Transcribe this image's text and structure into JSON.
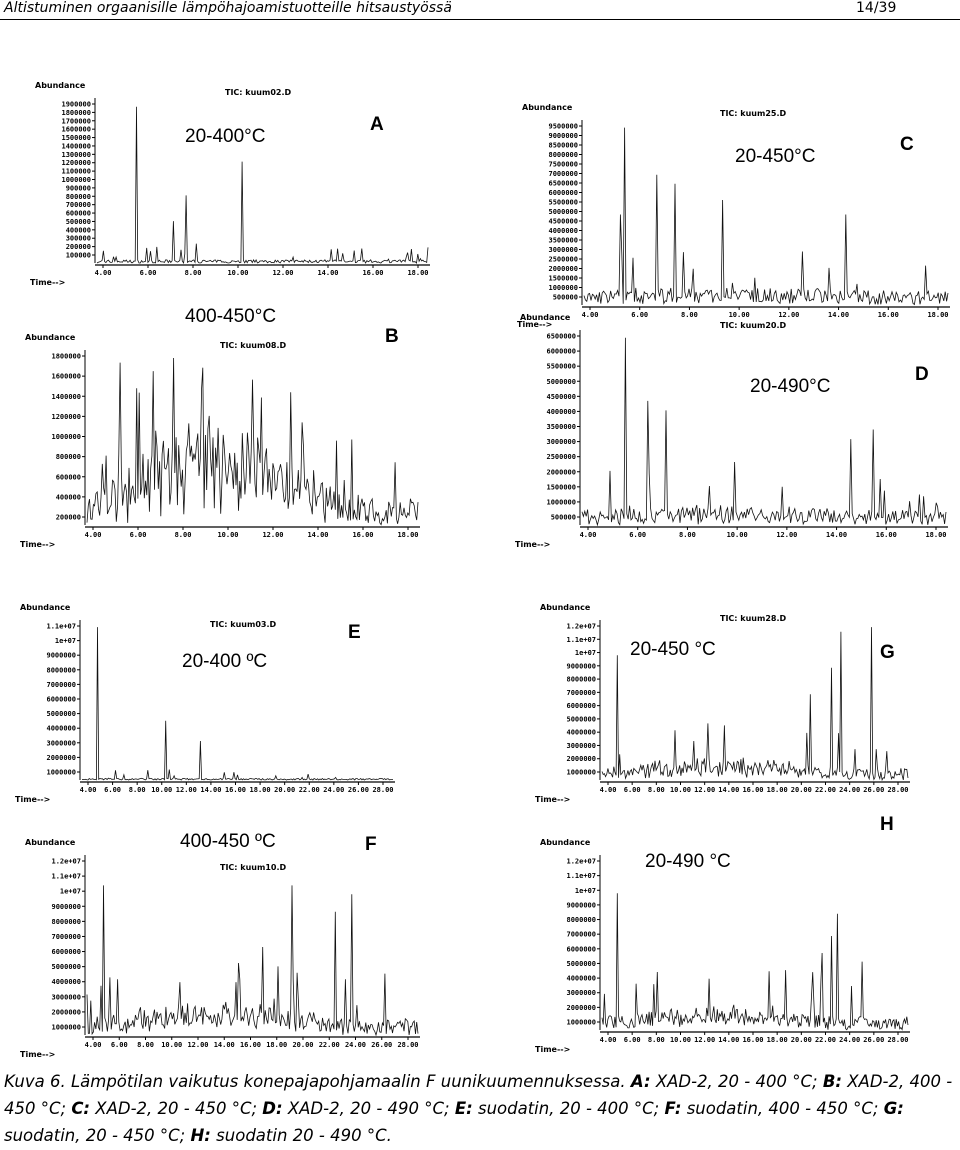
{
  "header": {
    "title": "Altistuminen orgaanisille lämpöhajoamistuotteille hitsaustyössä",
    "page": "14/39"
  },
  "panels": [
    {
      "letter": "A",
      "temp": "20-400°C",
      "tic": "TIC: kuum02.D",
      "ylabel": "Abundance",
      "xlabel": "Time-->",
      "yticks": [
        "1900000",
        "1800000",
        "1700000",
        "1600000",
        "1500000",
        "1400000",
        "1300000",
        "1200000",
        "1100000",
        "1000000",
        "900000",
        "800000",
        "700000",
        "600000",
        "500000",
        "400000",
        "300000",
        "200000",
        "100000"
      ],
      "xticks": [
        "4.00",
        "6.00",
        "8.00",
        "10.00",
        "12.00",
        "14.00",
        "16.00",
        "18.00"
      ]
    },
    {
      "letter": "B",
      "temp": "400-450°C",
      "tic": "TIC: kuum08.D",
      "ylabel": "Abundance",
      "xlabel": "Time-->",
      "yticks": [
        "1800000",
        "1600000",
        "1400000",
        "1200000",
        "1000000",
        "800000",
        "600000",
        "400000",
        "200000"
      ],
      "xticks": [
        "4.00",
        "6.00",
        "8.00",
        "10.00",
        "12.00",
        "14.00",
        "16.00",
        "18.00"
      ]
    },
    {
      "letter": "C",
      "temp": "20-450°C",
      "tic": "TIC: kuum25.D",
      "ylabel": "Abundance",
      "xlabel": "Time-->",
      "yticks": [
        "9500000",
        "9000000",
        "8500000",
        "8000000",
        "7500000",
        "7000000",
        "6500000",
        "6000000",
        "5500000",
        "5000000",
        "4500000",
        "4000000",
        "3500000",
        "3000000",
        "2500000",
        "2000000",
        "1500000",
        "1000000",
        "500000"
      ],
      "xticks": [
        "4.00",
        "6.00",
        "8.00",
        "10.00",
        "12.00",
        "14.00",
        "16.00",
        "18.00"
      ]
    },
    {
      "letter": "D",
      "temp": "20-490°C",
      "tic": "TIC: kuum20.D",
      "ylabel": "Abundance",
      "xlabel": "Time-->",
      "yticks": [
        "6500000",
        "6000000",
        "5500000",
        "5000000",
        "4500000",
        "4000000",
        "3500000",
        "3000000",
        "2500000",
        "2000000",
        "1500000",
        "1000000",
        "500000"
      ],
      "xticks": [
        "4.00",
        "6.00",
        "8.00",
        "10.00",
        "12.00",
        "14.00",
        "16.00",
        "18.00"
      ]
    },
    {
      "letter": "E",
      "temp": "20-400 ºC",
      "tic": "TIC: kuum03.D",
      "ylabel": "Abundance",
      "xlabel": "Time-->",
      "yticks": [
        "1.1e+07",
        "1e+07",
        "9000000",
        "8000000",
        "7000000",
        "6000000",
        "5000000",
        "4000000",
        "3000000",
        "2000000",
        "1000000"
      ],
      "xticks": [
        "4.00",
        "6.00",
        "8.00",
        "10.00",
        "12.00",
        "14.00",
        "16.00",
        "18.00",
        "20.00",
        "22.00",
        "24.00",
        "26.00",
        "28.00"
      ]
    },
    {
      "letter": "F",
      "temp": "400-450 ºC",
      "tic": "TIC: kuum10.D",
      "ylabel": "Abundance",
      "xlabel": "Time-->",
      "yticks": [
        "1.2e+07",
        "1.1e+07",
        "1e+07",
        "9000000",
        "8000000",
        "7000000",
        "6000000",
        "5000000",
        "4000000",
        "3000000",
        "2000000",
        "1000000"
      ],
      "xticks": [
        "4.00",
        "6.00",
        "8.00",
        "10.00",
        "12.00",
        "14.00",
        "16.00",
        "18.00",
        "20.00",
        "22.00",
        "24.00",
        "26.00",
        "28.00"
      ]
    },
    {
      "letter": "G",
      "temp": "20-450 °C",
      "tic": "TIC: kuum28.D",
      "ylabel": "Abundance",
      "xlabel": "Time-->",
      "yticks": [
        "1.2e+07",
        "1.1e+07",
        "1e+07",
        "9000000",
        "8000000",
        "7000000",
        "6000000",
        "5000000",
        "4000000",
        "3000000",
        "2000000",
        "1000000"
      ],
      "xticks": [
        "4.00",
        "6.00",
        "8.00",
        "10.00",
        "12.00",
        "14.00",
        "16.00",
        "18.00",
        "20.00",
        "22.00",
        "24.00",
        "26.00",
        "28.00"
      ]
    },
    {
      "letter": "H",
      "temp": "20-490 °C",
      "ylabel": "Abundance",
      "xlabel": "Time-->",
      "yticks": [
        "1.2e+07",
        "1.1e+07",
        "1e+07",
        "9000000",
        "8000000",
        "7000000",
        "6000000",
        "5000000",
        "4000000",
        "3000000",
        "2000000",
        "1000000"
      ],
      "xticks": [
        "4.00",
        "6.00",
        "8.00",
        "10.00",
        "12.00",
        "14.00",
        "16.00",
        "18.00",
        "20.00",
        "22.00",
        "24.00",
        "26.00",
        "28.00"
      ]
    }
  ],
  "caption": {
    "intro": "Kuva 6. Lämpötilan vaikutus konepajapohjamaalin F uunikuumennuksessa. ",
    "items": [
      {
        "key": "A:",
        "text": "XAD-2, 20 - 400 °C;"
      },
      {
        "key": "B:",
        "text": "XAD-2, 400 - 450 °C;"
      },
      {
        "key": "C:",
        "text": "XAD-2, 20 - 450 °C;"
      },
      {
        "key": "D:",
        "text": "XAD-2, 20 - 490 °C;"
      },
      {
        "key": "E:",
        "text": "suodatin, 20 - 400 °C;"
      },
      {
        "key": "F:",
        "text": "suodatin, 400 - 450 °C;"
      },
      {
        "key": "G:",
        "text": "suodatin, 20 - 450 °C;"
      },
      {
        "key": "H:",
        "text": "suodatin 20 - 490 °C."
      }
    ]
  }
}
